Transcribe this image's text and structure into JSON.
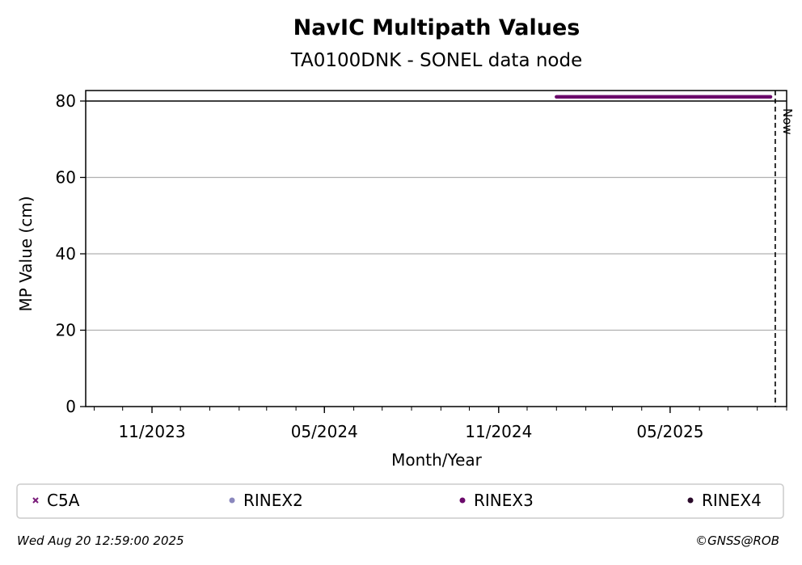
{
  "chart_data": {
    "type": "scatter",
    "title": "NavIC Multipath Values",
    "subtitle": "TA0100DNK - SONEL data node",
    "xlabel": "Month/Year",
    "ylabel": "MP Value (cm)",
    "xlim": [
      "2023-08-23",
      "2025-09-01"
    ],
    "ylim": [
      0,
      80
    ],
    "yticks": [
      0,
      20,
      40,
      60,
      80
    ],
    "xticks": [
      {
        "date": "2023-11-01",
        "label": "11/2023"
      },
      {
        "date": "2024-05-01",
        "label": "05/2024"
      },
      {
        "date": "2024-11-01",
        "label": "11/2024"
      },
      {
        "date": "2025-05-01",
        "label": "05/2025"
      }
    ],
    "grid": "y",
    "now_line": {
      "date": "2025-08-20",
      "label": "Now"
    },
    "legend": {
      "placement": "bottom",
      "entries": [
        {
          "name": "C5A",
          "marker": "x",
          "color": "#7a1c7a"
        },
        {
          "name": "RINEX2",
          "marker": "circle",
          "color": "#8a87bd"
        },
        {
          "name": "RINEX3",
          "marker": "circle",
          "color": "#6b0a6b"
        },
        {
          "name": "RINEX4",
          "marker": "circle",
          "color": "#2a0a2a"
        }
      ]
    },
    "series": [
      {
        "name": "RINEX3",
        "color": "#6b0a6b",
        "note_out_of_range": "values plotted above upper axis limit",
        "x": [
          "2025-01-01",
          "2025-08-15"
        ],
        "y": [
          81,
          81
        ]
      }
    ]
  },
  "footer": {
    "timestamp": "Wed Aug 20 12:59:00 2025",
    "credit": "©GNSS@ROB"
  }
}
